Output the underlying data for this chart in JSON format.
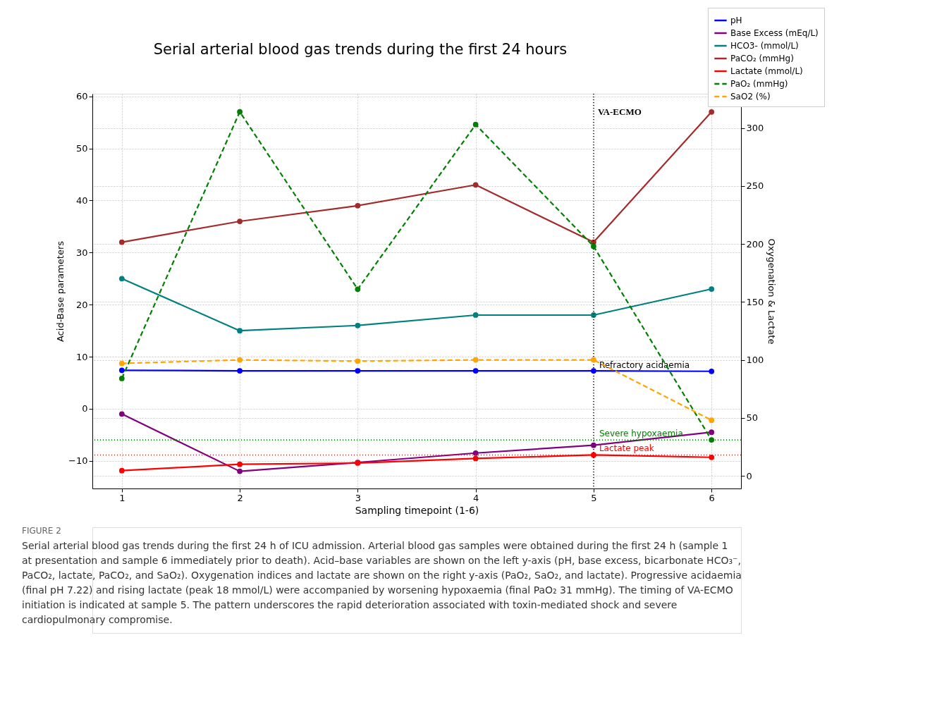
{
  "chart_data": {
    "type": "line",
    "title": "Serial arterial blood gas trends during the first 24 hours",
    "xlabel": "Sampling timepoint (1-6)",
    "ylabel": "Acid-Base parameters",
    "y2label": "Oxygenation & Lactate",
    "x": [
      1,
      2,
      3,
      4,
      5,
      6
    ],
    "series": [
      {
        "name": "pH",
        "color": "#0000ff",
        "values": [
          7.4,
          7.3,
          7.3,
          7.3,
          7.3,
          7.2
        ]
      },
      {
        "name": "Base Excess (mEq/L)",
        "color": "#800080",
        "values": [
          -1,
          -12,
          -10.3,
          -8.5,
          -7,
          -4.5
        ]
      },
      {
        "name": "HCO3- (mmol/L)",
        "color": "#008080",
        "values": [
          25,
          15,
          16,
          18,
          18,
          23
        ]
      },
      {
        "name": "PaCO₂ (mmHg)",
        "color": "#a52a2a",
        "values": [
          32,
          36,
          39,
          43,
          32,
          57
        ]
      },
      {
        "name": "Lactate (mmol/L)",
        "color": "#ff0000",
        "axis": "y2",
        "values": [
          4.5,
          10,
          11,
          15,
          18,
          16
        ]
      },
      {
        "name": "PaO₂ (mmHg)",
        "color": "#008000",
        "axis": "y2",
        "line_style": "dashed",
        "values": [
          84,
          314,
          161,
          303,
          198,
          31
        ]
      },
      {
        "name": "SaO2 (%)",
        "color": "#ffa500",
        "axis": "y2",
        "line_style": "dashed",
        "values": [
          97,
          100,
          99,
          100,
          100,
          48
        ]
      }
    ],
    "xlim": [
      0.75,
      6.25
    ],
    "xticks": [
      1,
      2,
      3,
      4,
      5,
      6
    ],
    "ylim": [
      -15.3,
      60.5
    ],
    "yticks": [
      -10,
      0,
      10,
      20,
      30,
      40,
      50,
      60
    ],
    "y2lim": [
      -10.9,
      329.6
    ],
    "y2ticks": [
      0,
      50,
      100,
      150,
      200,
      250,
      300
    ],
    "ref_lines": [
      {
        "axis": "x",
        "value": 5,
        "label": "VA-ECMO",
        "color": "#000000",
        "line_style": "dotted"
      },
      {
        "axis": "y2",
        "value": 31,
        "label": "Severe hypoxaemia",
        "color": "#008000",
        "line_style": "dotted"
      },
      {
        "axis": "y2",
        "value": 18,
        "label": "Lactate peak",
        "color": "#ff0000",
        "line_style": "dotted"
      }
    ],
    "annotations": [
      {
        "text": "Refractory acidaemia",
        "x": 5,
        "y": 7.3
      },
      "FIGURE 2",
      "Serial arterial blood gas trends during the first 24 h of ICU admission. Arterial blood gas samples were obtained during the first 24 h (sample 1 at presentation and sample 6 immediately prior to death). Acid–base variables are shown on the left y-axis (pH, base excess, bicarbonate HCO₃⁻, PaCO₂, lactate, PaCO₂, and SaO₂). Oxygenation indices and lactate are shown on the right y-axis (PaO₂, SaO₂, and lactate). Progressive acidaemia (final pH 7.22) and rising lactate (peak 18 mmol/L) were accompanied by worsening hypoxaemia (final PaO₂ 31 mmHg). The timing of VA-ECMO initiation is indicated at sample 5. The pattern underscores the rapid deterioration associated with toxin-mediated shock and severe cardiopulmonary compromise."
    ],
    "grid": true,
    "legend": "top right",
    "marker": "circle",
    "line_style": "solid"
  }
}
